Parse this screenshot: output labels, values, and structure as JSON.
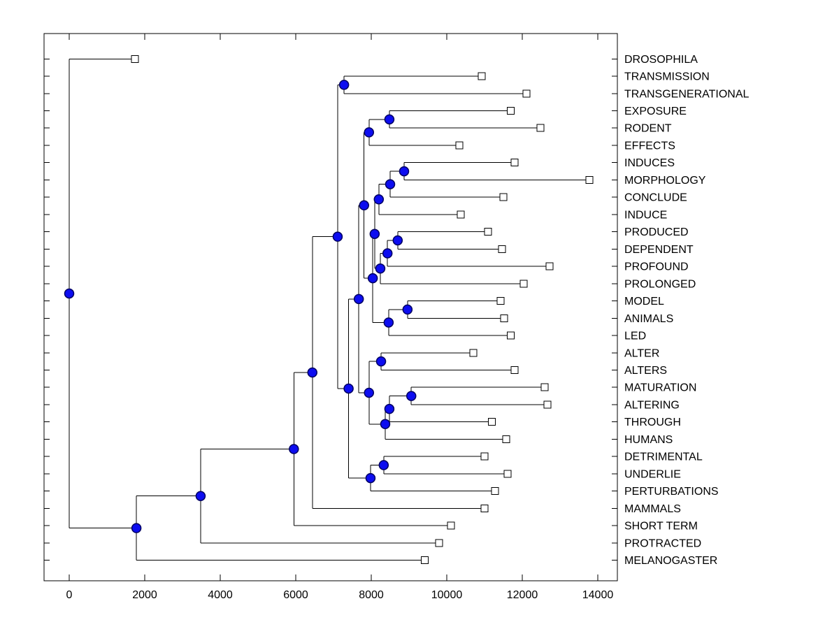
{
  "figure": {
    "background": "#ffffff",
    "line_color": "#000000",
    "node_marker": {
      "shape": "circle",
      "fill": "#0d0df0",
      "edge": "#000060",
      "radius": 6.5
    },
    "leaf_marker": {
      "shape": "square",
      "fill": "#ffffff",
      "edge": "#000000",
      "size": 10
    }
  },
  "chart_data": {
    "type": "dendrogram",
    "orientation": "horizontal-left-to-right",
    "title": "",
    "xlabel": "",
    "ylabel": "",
    "grid": false,
    "x_ticks": [
      0,
      2000,
      4000,
      6000,
      8000,
      10000,
      12000,
      14000
    ],
    "x_axis_range": [
      -670,
      14520
    ],
    "leaf_labels": [
      "DROSOPHILA",
      "TRANSMISSION",
      "TRANSGENERATIONAL",
      "EXPOSURE",
      "RODENT",
      "EFFECTS",
      "INDUCES",
      "MORPHOLOGY",
      "CONCLUDE",
      "INDUCE",
      "PRODUCED",
      "DEPENDENT",
      "PROFOUND",
      "PROLONGED",
      "MODEL",
      "ANIMALS",
      "LED",
      "ALTER",
      "ALTERS",
      "MATURATION",
      "ALTERING",
      "THROUGH",
      "HUMANS",
      "DETRIMENTAL",
      "UNDERLIE",
      "PERTURBATIONS",
      "MAMMALS",
      "SHORT TERM",
      "PROTRACTED",
      "MELANOGASTER"
    ],
    "leaves": [
      {
        "label": "DROSOPHILA",
        "tip": 1740
      },
      {
        "label": "TRANSMISSION",
        "tip": 10930
      },
      {
        "label": "TRANSGENERATIONAL",
        "tip": 12110
      },
      {
        "label": "EXPOSURE",
        "tip": 11690
      },
      {
        "label": "RODENT",
        "tip": 12480
      },
      {
        "label": "EFFECTS",
        "tip": 10330
      },
      {
        "label": "INDUCES",
        "tip": 11800
      },
      {
        "label": "MORPHOLOGY",
        "tip": 13780
      },
      {
        "label": "CONCLUDE",
        "tip": 11500
      },
      {
        "label": "INDUCE",
        "tip": 10370
      },
      {
        "label": "PRODUCED",
        "tip": 11090
      },
      {
        "label": "DEPENDENT",
        "tip": 11460
      },
      {
        "label": "PROFOUND",
        "tip": 12720
      },
      {
        "label": "PROLONGED",
        "tip": 12040
      },
      {
        "label": "MODEL",
        "tip": 11430
      },
      {
        "label": "ANIMALS",
        "tip": 11520
      },
      {
        "label": "LED",
        "tip": 11690
      },
      {
        "label": "ALTER",
        "tip": 10700
      },
      {
        "label": "ALTERS",
        "tip": 11800
      },
      {
        "label": "MATURATION",
        "tip": 12590
      },
      {
        "label": "ALTERING",
        "tip": 12670
      },
      {
        "label": "THROUGH",
        "tip": 11190
      },
      {
        "label": "HUMANS",
        "tip": 11570
      },
      {
        "label": "DETRIMENTAL",
        "tip": 11000
      },
      {
        "label": "UNDERLIE",
        "tip": 11610
      },
      {
        "label": "PERTURBATIONS",
        "tip": 11280
      },
      {
        "label": "MAMMALS",
        "tip": 11000
      },
      {
        "label": "SHORT TERM",
        "tip": 10110
      },
      {
        "label": "PROTRACTED",
        "tip": 9800
      },
      {
        "label": "MELANOGASTER",
        "tip": 9420
      }
    ],
    "tree": {
      "x": 0,
      "children": [
        {
          "label": "DROSOPHILA",
          "x": 1740
        },
        {
          "x": 1780,
          "children": [
            {
              "x": 3480,
              "children": [
                {
                  "x": 5950,
                  "children": [
                    {
                      "x": 6440,
                      "children": [
                        {
                          "x": 7110,
                          "children": [
                            {
                              "x": 7280,
                              "children": [
                                {
                                  "label": "TRANSMISSION",
                                  "x": 10930
                                },
                                {
                                  "label": "TRANSGENERATIONAL",
                                  "x": 12110
                                }
                              ]
                            },
                            {
                              "x": 7400,
                              "children": [
                                {
                                  "x": 7670,
                                  "children": [
                                    {
                                      "x": 7810,
                                      "children": [
                                        {
                                          "x": 7940,
                                          "children": [
                                            {
                                              "x": 8480,
                                              "children": [
                                                {
                                                  "label": "EXPOSURE",
                                                  "x": 11690
                                                },
                                                {
                                                  "label": "RODENT",
                                                  "x": 12480
                                                }
                                              ]
                                            },
                                            {
                                              "label": "EFFECTS",
                                              "x": 10330
                                            }
                                          ]
                                        },
                                        {
                                          "x": 8040,
                                          "children": [
                                            {
                                              "x": 8090,
                                              "children": [
                                                {
                                                  "x": 8200,
                                                  "children": [
                                                    {
                                                      "x": 8500,
                                                      "children": [
                                                        {
                                                          "x": 8870,
                                                          "children": [
                                                            {
                                                              "label": "INDUCES",
                                                              "x": 11800
                                                            },
                                                            {
                                                              "label": "MORPHOLOGY",
                                                              "x": 13780
                                                            }
                                                          ]
                                                        },
                                                        {
                                                          "label": "CONCLUDE",
                                                          "x": 11500
                                                        }
                                                      ]
                                                    },
                                                    {
                                                      "label": "INDUCE",
                                                      "x": 10370
                                                    }
                                                  ]
                                                },
                                                {
                                                  "x": 8240,
                                                  "children": [
                                                    {
                                                      "x": 8430,
                                                      "children": [
                                                        {
                                                          "x": 8700,
                                                          "children": [
                                                            {
                                                              "label": "PRODUCED",
                                                              "x": 11090
                                                            },
                                                            {
                                                              "label": "DEPENDENT",
                                                              "x": 11460
                                                            }
                                                          ]
                                                        },
                                                        {
                                                          "label": "PROFOUND",
                                                          "x": 12720
                                                        }
                                                      ]
                                                    },
                                                    {
                                                      "label": "PROLONGED",
                                                      "x": 12040
                                                    }
                                                  ]
                                                }
                                              ]
                                            },
                                            {
                                              "x": 8460,
                                              "children": [
                                                {
                                                  "x": 8960,
                                                  "children": [
                                                    {
                                                      "label": "MODEL",
                                                      "x": 11430
                                                    },
                                                    {
                                                      "label": "ANIMALS",
                                                      "x": 11520
                                                    }
                                                  ]
                                                },
                                                {
                                                  "label": "LED",
                                                  "x": 11690
                                                }
                                              ]
                                            }
                                          ]
                                        }
                                      ]
                                    },
                                    {
                                      "x": 7940,
                                      "children": [
                                        {
                                          "x": 8260,
                                          "children": [
                                            {
                                              "label": "ALTER",
                                              "x": 10700
                                            },
                                            {
                                              "label": "ALTERS",
                                              "x": 11800
                                            }
                                          ]
                                        },
                                        {
                                          "x": 8370,
                                          "children": [
                                            {
                                              "x": 8480,
                                              "children": [
                                                {
                                                  "x": 9060,
                                                  "children": [
                                                    {
                                                      "label": "MATURATION",
                                                      "x": 12590
                                                    },
                                                    {
                                                      "label": "ALTERING",
                                                      "x": 12670
                                                    }
                                                  ]
                                                },
                                                {
                                                  "label": "THROUGH",
                                                  "x": 11190
                                                }
                                              ]
                                            },
                                            {
                                              "label": "HUMANS",
                                              "x": 11570
                                            }
                                          ]
                                        }
                                      ]
                                    }
                                  ]
                                },
                                {
                                  "x": 7980,
                                  "children": [
                                    {
                                      "x": 8330,
                                      "children": [
                                        {
                                          "label": "DETRIMENTAL",
                                          "x": 11000
                                        },
                                        {
                                          "label": "UNDERLIE",
                                          "x": 11610
                                        }
                                      ]
                                    },
                                    {
                                      "label": "PERTURBATIONS",
                                      "x": 11280
                                    }
                                  ]
                                }
                              ]
                            }
                          ]
                        },
                        {
                          "label": "MAMMALS",
                          "x": 11000
                        }
                      ]
                    },
                    {
                      "label": "SHORT TERM",
                      "x": 10110
                    }
                  ]
                },
                {
                  "label": "PROTRACTED",
                  "x": 9800
                }
              ]
            },
            {
              "label": "MELANOGASTER",
              "x": 9420
            }
          ]
        }
      ]
    }
  }
}
